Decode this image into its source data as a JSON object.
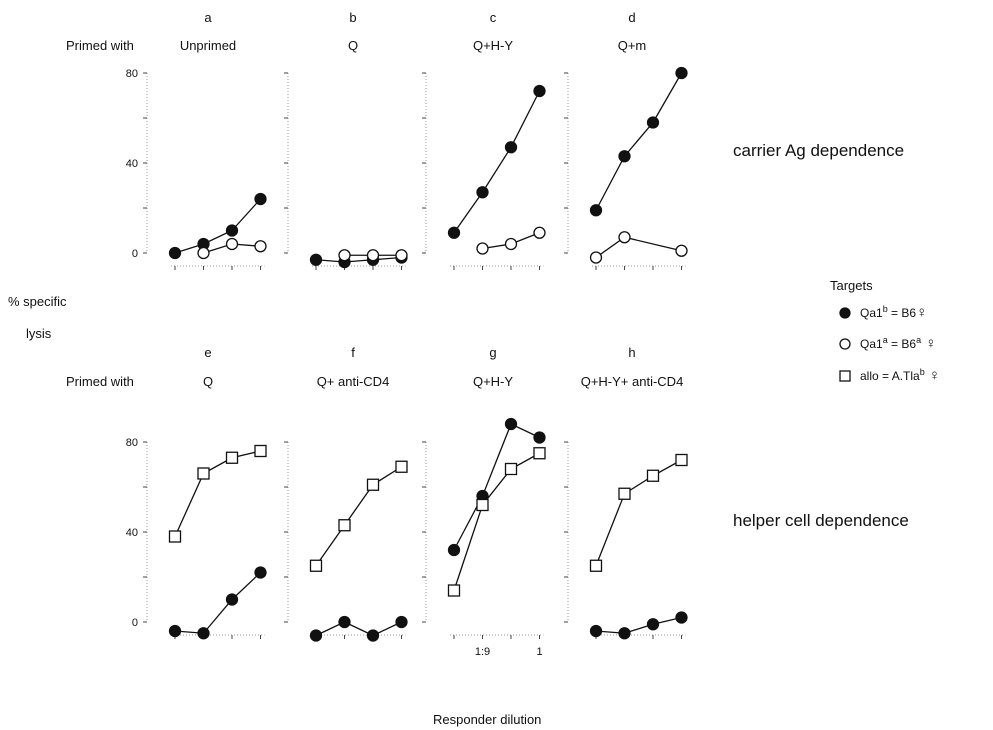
{
  "figure": {
    "primed_with_label": "Primed with",
    "ylabel_line1": "% specific",
    "ylabel_line2": "lysis",
    "xlabel": "Responder  dilution",
    "row_labels": [
      "carrier Ag dependence",
      "helper cell dependence"
    ]
  },
  "legend": {
    "title": "Targets",
    "items": [
      {
        "marker": "filled-circle",
        "parts": [
          "Qa1",
          "b",
          " = B6",
          "♀"
        ]
      },
      {
        "marker": "open-circle",
        "parts": [
          "Qa1",
          "a",
          " = B6",
          "a",
          " ♀"
        ]
      },
      {
        "marker": "open-square",
        "parts": [
          "allo  = A.Tla",
          "b",
          " ♀"
        ]
      }
    ]
  },
  "chart_data": [
    {
      "type": "line",
      "panel": "a",
      "subtitle": "Unprimed",
      "ylim": [
        0,
        80
      ],
      "ytick_labels": [
        "80",
        "40",
        "0"
      ],
      "x": [
        1,
        2,
        3,
        4
      ],
      "xtick_labels": [],
      "series": [
        {
          "marker": "filled-circle",
          "values": [
            0,
            4,
            10,
            24
          ]
        },
        {
          "marker": "open-circle",
          "values": [
            null,
            0,
            4,
            3
          ]
        }
      ]
    },
    {
      "type": "line",
      "panel": "b",
      "subtitle": "Q",
      "ylim": [
        0,
        80
      ],
      "x": [
        1,
        2,
        3,
        4
      ],
      "xtick_labels": [],
      "series": [
        {
          "marker": "filled-circle",
          "values": [
            -3,
            -4,
            -3,
            -2
          ]
        },
        {
          "marker": "open-circle",
          "values": [
            null,
            -1,
            -1,
            -1
          ]
        }
      ]
    },
    {
      "type": "line",
      "panel": "c",
      "subtitle": "Q+H-Y",
      "ylim": [
        0,
        80
      ],
      "x": [
        1,
        2,
        3,
        4
      ],
      "xtick_labels": [],
      "series": [
        {
          "marker": "filled-circle",
          "values": [
            9,
            27,
            47,
            72
          ]
        },
        {
          "marker": "open-circle",
          "values": [
            null,
            2,
            4,
            9
          ]
        }
      ]
    },
    {
      "type": "line",
      "panel": "d",
      "subtitle": "Q+m",
      "ylim": [
        0,
        80
      ],
      "x": [
        1,
        2,
        3,
        4
      ],
      "xtick_labels": [],
      "series": [
        {
          "marker": "filled-circle",
          "values": [
            19,
            43,
            58,
            80
          ]
        },
        {
          "marker": "open-circle",
          "values": [
            -2,
            7,
            null,
            1
          ]
        }
      ]
    },
    {
      "type": "line",
      "panel": "e",
      "subtitle": "Q",
      "ylim": [
        0,
        80
      ],
      "ytick_labels": [
        "80",
        "40",
        "0"
      ],
      "x": [
        1,
        2,
        3,
        4
      ],
      "xtick_labels": [],
      "series": [
        {
          "marker": "open-square",
          "values": [
            38,
            66,
            73,
            76
          ]
        },
        {
          "marker": "filled-circle",
          "values": [
            -4,
            -5,
            10,
            22
          ]
        }
      ]
    },
    {
      "type": "line",
      "panel": "f",
      "subtitle": "Q+ anti-CD4",
      "ylim": [
        0,
        80
      ],
      "x": [
        1,
        2,
        3,
        4
      ],
      "xtick_labels": [],
      "series": [
        {
          "marker": "open-square",
          "values": [
            25,
            43,
            61,
            69
          ]
        },
        {
          "marker": "filled-circle",
          "values": [
            -6,
            0,
            -6,
            0
          ]
        }
      ]
    },
    {
      "type": "line",
      "panel": "g",
      "subtitle": "Q+H-Y",
      "ylim": [
        0,
        80
      ],
      "x": [
        1,
        2,
        3,
        4
      ],
      "xtick_labels": [
        "",
        "1:9",
        "",
        "1"
      ],
      "series": [
        {
          "marker": "filled-circle",
          "values": [
            32,
            56,
            88,
            82
          ]
        },
        {
          "marker": "open-square",
          "values": [
            14,
            52,
            68,
            75
          ]
        }
      ]
    },
    {
      "type": "line",
      "panel": "h",
      "subtitle": "Q+H-Y+ anti-CD4",
      "ylim": [
        0,
        80
      ],
      "x": [
        1,
        2,
        3,
        4
      ],
      "xtick_labels": [],
      "series": [
        {
          "marker": "open-square",
          "values": [
            25,
            57,
            65,
            72
          ]
        },
        {
          "marker": "filled-circle",
          "values": [
            -4,
            -5,
            -1,
            2
          ]
        }
      ]
    }
  ]
}
